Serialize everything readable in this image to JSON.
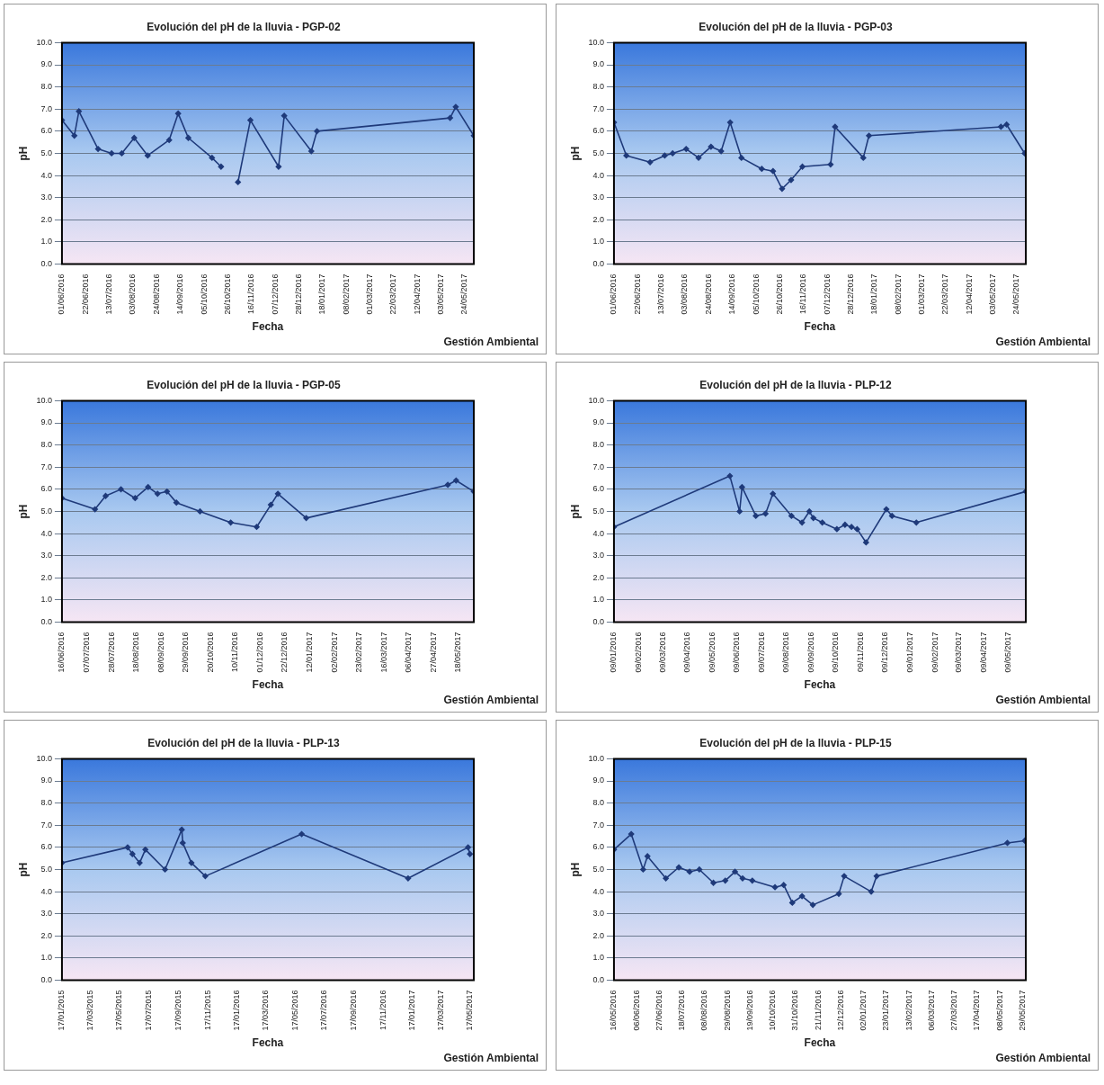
{
  "chart_data": [
    {
      "type": "line",
      "title": "Evolución del pH de la lluvia - PGP-02",
      "xlabel": "Fecha",
      "ylabel": "pH",
      "annotations": [
        "Gestión Ambiental"
      ],
      "grid": "y",
      "marker": "diamond",
      "line_style": "solid",
      "ylim": [
        0,
        10
      ],
      "yticks": [
        {
          "value": 0,
          "label": "0.0"
        },
        {
          "value": 1,
          "label": "1.0"
        },
        {
          "value": 2,
          "label": "2.0"
        },
        {
          "value": 3,
          "label": "3.0"
        },
        {
          "value": 4,
          "label": "4.0"
        },
        {
          "value": 5,
          "label": "5.0"
        },
        {
          "value": 6,
          "label": "6.0"
        },
        {
          "value": 7,
          "label": "7.0"
        },
        {
          "value": 8,
          "label": "8.0"
        },
        {
          "value": 9,
          "label": "9.0"
        },
        {
          "value": 10,
          "label": "10.0"
        }
      ],
      "xlim": [
        "2016-06-01",
        "2017-06-01"
      ],
      "xticks": [
        {
          "value": "2016-06-01",
          "label": "01/06/2016"
        },
        {
          "value": "2016-06-22",
          "label": "22/06/2016"
        },
        {
          "value": "2016-07-13",
          "label": "13/07/2016"
        },
        {
          "value": "2016-08-03",
          "label": "03/08/2016"
        },
        {
          "value": "2016-08-24",
          "label": "24/08/2016"
        },
        {
          "value": "2016-09-14",
          "label": "14/09/2016"
        },
        {
          "value": "2016-10-05",
          "label": "05/10/2016"
        },
        {
          "value": "2016-10-26",
          "label": "26/10/2016"
        },
        {
          "value": "2016-11-16",
          "label": "16/11/2016"
        },
        {
          "value": "2016-12-07",
          "label": "07/12/2016"
        },
        {
          "value": "2016-12-28",
          "label": "28/12/2016"
        },
        {
          "value": "2017-01-18",
          "label": "18/01/2017"
        },
        {
          "value": "2017-02-08",
          "label": "08/02/2017"
        },
        {
          "value": "2017-03-01",
          "label": "01/03/2017"
        },
        {
          "value": "2017-03-22",
          "label": "22/03/2017"
        },
        {
          "value": "2017-04-12",
          "label": "12/04/2017"
        },
        {
          "value": "2017-05-03",
          "label": "03/05/2017"
        },
        {
          "value": "2017-05-24",
          "label": "24/05/2017"
        }
      ],
      "series": [
        {
          "color": "#1f3a7a",
          "x": [
            "2016-06-01",
            "2016-06-12",
            "2016-06-16",
            "2016-07-03",
            "2016-07-15",
            "2016-07-24",
            "2016-08-04",
            "2016-08-16",
            "2016-09-04",
            "2016-09-12",
            "2016-09-21",
            "2016-10-12",
            "2016-10-20"
          ],
          "values": [
            6.5,
            5.8,
            6.9,
            5.2,
            5.0,
            5.0,
            5.7,
            4.9,
            5.6,
            6.8,
            5.7,
            4.8,
            4.4
          ]
        },
        {
          "color": "#1f3a7a",
          "x": [
            "2016-11-04",
            "2016-11-15",
            "2016-12-10",
            "2016-12-15",
            "2017-01-08",
            "2017-01-13",
            "2017-05-11",
            "2017-05-16",
            "2017-06-01"
          ],
          "values": [
            3.7,
            6.5,
            4.4,
            6.7,
            5.1,
            6.0,
            6.6,
            7.1,
            5.8
          ]
        }
      ]
    },
    {
      "type": "line",
      "title": "Evolución del pH de la lluvia - PGP-03",
      "xlabel": "Fecha",
      "ylabel": "pH",
      "annotations": [
        "Gestión Ambiental"
      ],
      "grid": "y",
      "marker": "diamond",
      "line_style": "solid",
      "ylim": [
        0,
        10
      ],
      "yticks": [
        {
          "value": 0,
          "label": "0.0"
        },
        {
          "value": 1,
          "label": "1.0"
        },
        {
          "value": 2,
          "label": "2.0"
        },
        {
          "value": 3,
          "label": "3.0"
        },
        {
          "value": 4,
          "label": "4.0"
        },
        {
          "value": 5,
          "label": "5.0"
        },
        {
          "value": 6,
          "label": "6.0"
        },
        {
          "value": 7,
          "label": "7.0"
        },
        {
          "value": 8,
          "label": "8.0"
        },
        {
          "value": 9,
          "label": "9.0"
        },
        {
          "value": 10,
          "label": "10.0"
        }
      ],
      "xlim": [
        "2016-06-01",
        "2017-06-01"
      ],
      "xticks": [
        {
          "value": "2016-06-01",
          "label": "01/06/2016"
        },
        {
          "value": "2016-06-22",
          "label": "22/06/2016"
        },
        {
          "value": "2016-07-13",
          "label": "13/07/2016"
        },
        {
          "value": "2016-08-03",
          "label": "03/08/2016"
        },
        {
          "value": "2016-08-24",
          "label": "24/08/2016"
        },
        {
          "value": "2016-09-14",
          "label": "14/09/2016"
        },
        {
          "value": "2016-10-05",
          "label": "05/10/2016"
        },
        {
          "value": "2016-10-26",
          "label": "26/10/2016"
        },
        {
          "value": "2016-11-16",
          "label": "16/11/2016"
        },
        {
          "value": "2016-12-07",
          "label": "07/12/2016"
        },
        {
          "value": "2016-12-28",
          "label": "28/12/2016"
        },
        {
          "value": "2017-01-18",
          "label": "18/01/2017"
        },
        {
          "value": "2017-02-08",
          "label": "08/02/2017"
        },
        {
          "value": "2017-03-01",
          "label": "01/03/2017"
        },
        {
          "value": "2017-03-22",
          "label": "22/03/2017"
        },
        {
          "value": "2017-04-12",
          "label": "12/04/2017"
        },
        {
          "value": "2017-05-03",
          "label": "03/05/2017"
        },
        {
          "value": "2017-05-24",
          "label": "24/05/2017"
        }
      ],
      "series": [
        {
          "color": "#1f3a7a",
          "x": [
            "2016-06-01",
            "2016-06-12",
            "2016-07-03",
            "2016-07-16",
            "2016-07-23",
            "2016-08-04",
            "2016-08-15",
            "2016-08-26",
            "2016-09-04",
            "2016-09-12",
            "2016-09-22",
            "2016-10-10",
            "2016-10-20",
            "2016-10-28",
            "2016-11-05",
            "2016-11-15",
            "2016-12-10",
            "2016-12-14",
            "2017-01-08",
            "2017-01-13",
            "2017-05-10",
            "2017-05-15",
            "2017-05-31"
          ],
          "values": [
            6.4,
            4.9,
            4.6,
            4.9,
            5.0,
            5.2,
            4.8,
            5.3,
            5.1,
            6.4,
            4.8,
            4.3,
            4.2,
            3.4,
            3.8,
            4.4,
            4.5,
            6.2,
            4.8,
            5.8,
            6.2,
            6.3,
            5.0
          ]
        }
      ]
    },
    {
      "type": "line",
      "title": "Evolución del pH de la lluvia - PGP-05",
      "xlabel": "Fecha",
      "ylabel": "pH",
      "annotations": [
        "Gestión Ambiental"
      ],
      "grid": "y",
      "marker": "diamond",
      "line_style": "solid",
      "ylim": [
        0,
        10
      ],
      "yticks": [
        {
          "value": 0,
          "label": "0.0"
        },
        {
          "value": 1,
          "label": "1.0"
        },
        {
          "value": 2,
          "label": "2.0"
        },
        {
          "value": 3,
          "label": "3.0"
        },
        {
          "value": 4,
          "label": "4.0"
        },
        {
          "value": 5,
          "label": "5.0"
        },
        {
          "value": 6,
          "label": "6.0"
        },
        {
          "value": 7,
          "label": "7.0"
        },
        {
          "value": 8,
          "label": "8.0"
        },
        {
          "value": 9,
          "label": "9.0"
        },
        {
          "value": 10,
          "label": "10.0"
        }
      ],
      "xlim": [
        "2016-06-16",
        "2017-05-31"
      ],
      "xticks": [
        {
          "value": "2016-06-16",
          "label": "16/06/2016"
        },
        {
          "value": "2016-07-07",
          "label": "07/07/2016"
        },
        {
          "value": "2016-07-28",
          "label": "28/07/2016"
        },
        {
          "value": "2016-08-18",
          "label": "18/08/2016"
        },
        {
          "value": "2016-09-08",
          "label": "08/09/2016"
        },
        {
          "value": "2016-09-29",
          "label": "29/09/2016"
        },
        {
          "value": "2016-10-20",
          "label": "20/10/2016"
        },
        {
          "value": "2016-11-10",
          "label": "10/11/2016"
        },
        {
          "value": "2016-12-01",
          "label": "01/12/2016"
        },
        {
          "value": "2016-12-22",
          "label": "22/12/2016"
        },
        {
          "value": "2017-01-12",
          "label": "12/01/2017"
        },
        {
          "value": "2017-02-02",
          "label": "02/02/2017"
        },
        {
          "value": "2017-02-23",
          "label": "23/02/2017"
        },
        {
          "value": "2017-03-16",
          "label": "16/03/2017"
        },
        {
          "value": "2017-04-06",
          "label": "06/04/2017"
        },
        {
          "value": "2017-04-27",
          "label": "27/04/2017"
        },
        {
          "value": "2017-05-18",
          "label": "18/05/2017"
        }
      ],
      "series": [
        {
          "color": "#1f3a7a",
          "x": [
            "2016-06-16",
            "2016-07-14",
            "2016-07-23",
            "2016-08-05",
            "2016-08-17",
            "2016-08-28",
            "2016-09-05",
            "2016-09-13",
            "2016-09-21",
            "2016-10-11",
            "2016-11-06",
            "2016-11-28",
            "2016-12-10",
            "2016-12-16",
            "2017-01-09",
            "2017-05-09",
            "2017-05-16",
            "2017-05-31"
          ],
          "values": [
            5.6,
            5.1,
            5.7,
            6.0,
            5.6,
            6.1,
            5.8,
            5.9,
            5.4,
            5.0,
            4.5,
            4.3,
            5.3,
            5.8,
            4.7,
            6.2,
            6.4,
            5.9
          ]
        }
      ]
    },
    {
      "type": "line",
      "title": "Evolución del pH de la lluvia - PLP-12",
      "xlabel": "Fecha",
      "ylabel": "pH",
      "annotations": [
        "Gestión Ambiental"
      ],
      "grid": "y",
      "marker": "diamond",
      "line_style": "solid",
      "ylim": [
        0,
        10
      ],
      "yticks": [
        {
          "value": 0,
          "label": "0.0"
        },
        {
          "value": 1,
          "label": "1.0"
        },
        {
          "value": 2,
          "label": "2.0"
        },
        {
          "value": 3,
          "label": "3.0"
        },
        {
          "value": 4,
          "label": "4.0"
        },
        {
          "value": 5,
          "label": "5.0"
        },
        {
          "value": 6,
          "label": "6.0"
        },
        {
          "value": 7,
          "label": "7.0"
        },
        {
          "value": 8,
          "label": "8.0"
        },
        {
          "value": 9,
          "label": "9.0"
        },
        {
          "value": 10,
          "label": "10.0"
        }
      ],
      "xlim": [
        "2016-01-09",
        "2017-05-31"
      ],
      "xticks": [
        {
          "value": "2016-01-09",
          "label": "09/01/2016"
        },
        {
          "value": "2016-02-09",
          "label": "09/02/2016"
        },
        {
          "value": "2016-03-09",
          "label": "09/03/2016"
        },
        {
          "value": "2016-04-09",
          "label": "09/04/2016"
        },
        {
          "value": "2016-05-09",
          "label": "09/05/2016"
        },
        {
          "value": "2016-06-09",
          "label": "09/06/2016"
        },
        {
          "value": "2016-07-09",
          "label": "09/07/2016"
        },
        {
          "value": "2016-08-09",
          "label": "09/08/2016"
        },
        {
          "value": "2016-09-09",
          "label": "09/09/2016"
        },
        {
          "value": "2016-10-09",
          "label": "09/10/2016"
        },
        {
          "value": "2016-11-09",
          "label": "09/11/2016"
        },
        {
          "value": "2016-12-09",
          "label": "09/12/2016"
        },
        {
          "value": "2017-01-09",
          "label": "09/01/2017"
        },
        {
          "value": "2017-02-09",
          "label": "09/02/2017"
        },
        {
          "value": "2017-03-09",
          "label": "09/03/2017"
        },
        {
          "value": "2017-04-09",
          "label": "09/04/2017"
        },
        {
          "value": "2017-05-09",
          "label": "09/05/2017"
        }
      ],
      "series": [
        {
          "color": "#1f3a7a",
          "x": [
            "2016-01-09",
            "2016-05-31",
            "2016-06-12",
            "2016-06-15",
            "2016-07-02",
            "2016-07-14",
            "2016-07-23",
            "2016-08-15",
            "2016-08-28",
            "2016-09-06",
            "2016-09-11",
            "2016-09-22",
            "2016-10-10",
            "2016-10-20",
            "2016-10-28",
            "2016-11-04",
            "2016-11-15",
            "2016-12-10",
            "2016-12-17",
            "2017-01-16",
            "2017-05-31"
          ],
          "values": [
            4.3,
            6.6,
            5.0,
            6.1,
            4.8,
            4.9,
            5.8,
            4.8,
            4.5,
            5.0,
            4.7,
            4.5,
            4.2,
            4.4,
            4.3,
            4.2,
            3.6,
            5.1,
            4.8,
            4.5,
            5.9
          ]
        }
      ]
    },
    {
      "type": "line",
      "title": "Evolución del pH de la lluvia - PLP-13",
      "xlabel": "Fecha",
      "ylabel": "pH",
      "annotations": [
        "Gestión Ambiental"
      ],
      "grid": "y",
      "marker": "diamond",
      "line_style": "solid",
      "ylim": [
        0,
        10
      ],
      "yticks": [
        {
          "value": 0,
          "label": "0.0"
        },
        {
          "value": 1,
          "label": "1.0"
        },
        {
          "value": 2,
          "label": "2.0"
        },
        {
          "value": 3,
          "label": "3.0"
        },
        {
          "value": 4,
          "label": "4.0"
        },
        {
          "value": 5,
          "label": "5.0"
        },
        {
          "value": 6,
          "label": "6.0"
        },
        {
          "value": 7,
          "label": "7.0"
        },
        {
          "value": 8,
          "label": "8.0"
        },
        {
          "value": 9,
          "label": "9.0"
        },
        {
          "value": 10,
          "label": "10.0"
        }
      ],
      "xlim": [
        "2015-01-17",
        "2017-05-25"
      ],
      "xticks": [
        {
          "value": "2015-01-17",
          "label": "17/01/2015"
        },
        {
          "value": "2015-03-17",
          "label": "17/03/2015"
        },
        {
          "value": "2015-05-17",
          "label": "17/05/2015"
        },
        {
          "value": "2015-07-17",
          "label": "17/07/2015"
        },
        {
          "value": "2015-09-17",
          "label": "17/09/2015"
        },
        {
          "value": "2015-11-17",
          "label": "17/11/2015"
        },
        {
          "value": "2016-01-17",
          "label": "17/01/2016"
        },
        {
          "value": "2016-03-17",
          "label": "17/03/2016"
        },
        {
          "value": "2016-05-17",
          "label": "17/05/2016"
        },
        {
          "value": "2016-07-17",
          "label": "17/07/2016"
        },
        {
          "value": "2016-09-17",
          "label": "17/09/2016"
        },
        {
          "value": "2016-11-17",
          "label": "17/11/2016"
        },
        {
          "value": "2017-01-17",
          "label": "17/01/2017"
        },
        {
          "value": "2017-03-17",
          "label": "17/03/2017"
        },
        {
          "value": "2017-05-17",
          "label": "17/05/2017"
        }
      ],
      "series": [
        {
          "color": "#1f3a7a",
          "x": [
            "2015-01-17",
            "2015-06-03",
            "2015-06-13",
            "2015-06-28",
            "2015-07-10",
            "2015-08-20",
            "2015-09-24",
            "2015-09-26",
            "2015-10-14",
            "2015-11-12",
            "2016-05-31",
            "2017-01-08",
            "2017-05-13",
            "2017-05-17"
          ],
          "values": [
            5.3,
            6.0,
            5.7,
            5.3,
            5.9,
            5.0,
            6.8,
            6.2,
            5.3,
            4.7,
            6.6,
            4.6,
            6.0,
            5.7
          ]
        }
      ]
    },
    {
      "type": "line",
      "title": "Evolución del pH de la lluvia - PLP-15",
      "xlabel": "Fecha",
      "ylabel": "pH",
      "annotations": [
        "Gestión Ambiental"
      ],
      "grid": "y",
      "marker": "diamond",
      "line_style": "solid",
      "ylim": [
        0,
        10
      ],
      "yticks": [
        {
          "value": 0,
          "label": "0.0"
        },
        {
          "value": 1,
          "label": "1.0"
        },
        {
          "value": 2,
          "label": "2.0"
        },
        {
          "value": 3,
          "label": "3.0"
        },
        {
          "value": 4,
          "label": "4.0"
        },
        {
          "value": 5,
          "label": "5.0"
        },
        {
          "value": 6,
          "label": "6.0"
        },
        {
          "value": 7,
          "label": "7.0"
        },
        {
          "value": 8,
          "label": "8.0"
        },
        {
          "value": 9,
          "label": "9.0"
        },
        {
          "value": 10,
          "label": "10.0"
        }
      ],
      "xlim": [
        "2016-05-16",
        "2017-06-01"
      ],
      "xticks": [
        {
          "value": "2016-05-16",
          "label": "16/05/2016"
        },
        {
          "value": "2016-06-06",
          "label": "06/06/2016"
        },
        {
          "value": "2016-06-27",
          "label": "27/06/2016"
        },
        {
          "value": "2016-07-18",
          "label": "18/07/2016"
        },
        {
          "value": "2016-08-08",
          "label": "08/08/2016"
        },
        {
          "value": "2016-08-29",
          "label": "29/08/2016"
        },
        {
          "value": "2016-09-19",
          "label": "19/09/2016"
        },
        {
          "value": "2016-10-10",
          "label": "10/10/2016"
        },
        {
          "value": "2016-10-31",
          "label": "31/10/2016"
        },
        {
          "value": "2016-11-21",
          "label": "21/11/2016"
        },
        {
          "value": "2016-12-12",
          "label": "12/12/2016"
        },
        {
          "value": "2017-01-02",
          "label": "02/01/2017"
        },
        {
          "value": "2017-01-23",
          "label": "23/01/2017"
        },
        {
          "value": "2017-02-13",
          "label": "13/02/2017"
        },
        {
          "value": "2017-03-06",
          "label": "06/03/2017"
        },
        {
          "value": "2017-03-27",
          "label": "27/03/2017"
        },
        {
          "value": "2017-04-17",
          "label": "17/04/2017"
        },
        {
          "value": "2017-05-08",
          "label": "08/05/2017"
        },
        {
          "value": "2017-05-29",
          "label": "29/05/2017"
        }
      ],
      "series": [
        {
          "color": "#1f3a7a",
          "x": [
            "2016-05-16",
            "2016-06-01",
            "2016-06-12",
            "2016-06-16",
            "2016-07-03",
            "2016-07-15",
            "2016-07-25",
            "2016-08-03",
            "2016-08-16",
            "2016-08-27",
            "2016-09-05",
            "2016-09-12",
            "2016-09-21",
            "2016-10-12",
            "2016-10-20",
            "2016-10-28",
            "2016-11-06",
            "2016-11-16",
            "2016-12-10",
            "2016-12-15",
            "2017-01-09",
            "2017-01-14",
            "2017-05-15",
            "2017-05-31"
          ],
          "values": [
            5.9,
            6.6,
            5.0,
            5.6,
            4.6,
            5.1,
            4.9,
            5.0,
            4.4,
            4.5,
            4.9,
            4.6,
            4.5,
            4.2,
            4.3,
            3.5,
            3.8,
            3.4,
            3.9,
            4.7,
            4.0,
            4.7,
            6.2,
            6.3
          ]
        }
      ]
    }
  ]
}
